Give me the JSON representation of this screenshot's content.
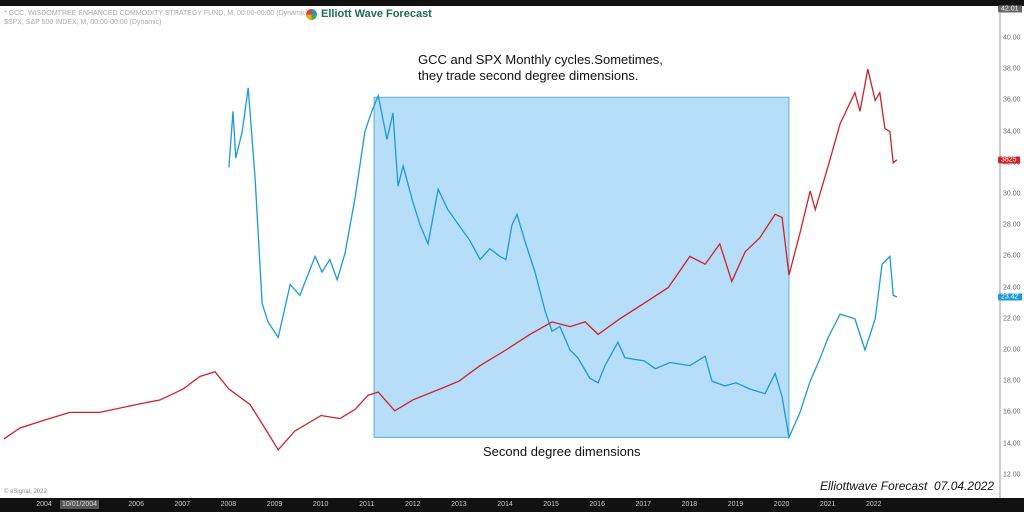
{
  "legend": {
    "line1": "* GCC, WISDOMTREE ENHANCED COMMODITY STRATEGY FUND, M, 00:00-00:00 (Dynamic)",
    "line2": "$SPX, S&P 500 INDEX, M, 00:00-00:00 (Dynamic)"
  },
  "logo_text": "Elliott Wave Forecast",
  "copyright": "© eSignal, 2022",
  "footer": "Elliottwave Forecast  07.04.2022",
  "cursor_date": "10/01/2004",
  "colors": {
    "gcc": "#1a9ad6",
    "spx": "#d0202a",
    "box_fill": "#b3dcf8",
    "box_stroke": "#5aaee0"
  },
  "chart_data": {
    "type": "line",
    "xlim": [
      2003.1,
      2024.3
    ],
    "ylim": [
      11.0,
      42.01
    ],
    "x_tick_labels": [
      "2004",
      "2006",
      "2007",
      "2008",
      "2009",
      "2010",
      "2011",
      "2012",
      "2013",
      "2014",
      "2015",
      "2016",
      "2017",
      "2018",
      "2019",
      "2020",
      "2021",
      "2022"
    ],
    "y_tick_labels": [
      "40.00",
      "38.00",
      "36.00",
      "34.00",
      "32.00",
      "30.00",
      "28.00",
      "26.00",
      "24.00",
      "22.00",
      "20.00",
      "18.00",
      "16.00",
      "14.00",
      "12.00"
    ],
    "y_top_label": "42.01",
    "grid": false,
    "annotations": {
      "title_line1": "GCC and SPX Monthly cycles.Sometimes,",
      "title_line2": "they trade second degree dimensions.",
      "box_label": "Second degree dimensions",
      "box": {
        "x0": 2011.16,
        "x1": 2020.16,
        "y0": 14.4,
        "y1": 36.2
      }
    },
    "series": [
      {
        "key": "gcc",
        "last_label": "23.42",
        "x": [
          2008.01,
          2008.1,
          2008.16,
          2008.3,
          2008.43,
          2008.58,
          2008.73,
          2008.86,
          2009.08,
          2009.34,
          2009.55,
          2009.88,
          2010.03,
          2010.2,
          2010.36,
          2010.53,
          2010.75,
          2010.96,
          2011.11,
          2011.25,
          2011.44,
          2011.57,
          2011.68,
          2011.79,
          2012.0,
          2012.16,
          2012.33,
          2012.55,
          2012.76,
          2013.0,
          2013.24,
          2013.46,
          2013.67,
          2013.89,
          2014.02,
          2014.15,
          2014.26,
          2014.43,
          2014.65,
          2014.87,
          2015.02,
          2015.19,
          2015.41,
          2015.58,
          2015.84,
          2016.02,
          2016.17,
          2016.45,
          2016.6,
          2017.02,
          2017.26,
          2017.58,
          2018.01,
          2018.34,
          2018.49,
          2018.77,
          2019.01,
          2019.31,
          2019.64,
          2019.86,
          2020.01,
          2020.16,
          2020.4,
          2020.62,
          2020.84,
          2021.01,
          2021.27,
          2021.59,
          2021.81,
          2022.03,
          2022.18,
          2022.35,
          2022.42,
          2022.5
        ],
        "y": [
          31.7,
          35.3,
          32.3,
          34.0,
          36.8,
          31.0,
          23.0,
          21.8,
          20.8,
          24.2,
          23.5,
          26.0,
          25.0,
          25.8,
          24.5,
          26.2,
          29.8,
          34.0,
          35.3,
          36.3,
          33.5,
          35.2,
          30.5,
          31.8,
          29.5,
          28.0,
          26.8,
          30.3,
          29.0,
          28.0,
          27.0,
          25.8,
          26.5,
          26.0,
          25.8,
          28.0,
          28.7,
          27.0,
          25.0,
          22.5,
          21.2,
          21.5,
          20.0,
          19.5,
          18.2,
          17.9,
          19.0,
          20.5,
          19.5,
          19.3,
          18.8,
          19.2,
          19.0,
          19.6,
          18.0,
          17.7,
          17.9,
          17.5,
          17.2,
          18.5,
          17.0,
          14.4,
          16.0,
          18.0,
          19.5,
          20.8,
          22.3,
          22.0,
          20.0,
          22.0,
          25.5,
          26.0,
          23.5,
          23.4
        ]
      },
      {
        "key": "spx",
        "last_label": "3825",
        "x": [
          2003.13,
          2003.48,
          2004.0,
          2004.56,
          2005.21,
          2006.0,
          2006.52,
          2007.02,
          2007.38,
          2007.71,
          2008.01,
          2008.47,
          2008.79,
          2009.08,
          2009.44,
          2010.01,
          2010.42,
          2010.75,
          2011.03,
          2011.25,
          2011.61,
          2012.0,
          2012.59,
          2013.0,
          2013.46,
          2014.02,
          2014.54,
          2015.02,
          2015.41,
          2015.74,
          2016.02,
          2016.49,
          2017.02,
          2017.54,
          2018.01,
          2018.34,
          2018.66,
          2018.92,
          2019.21,
          2019.53,
          2019.86,
          2020.01,
          2020.16,
          2020.4,
          2020.62,
          2020.73,
          2021.01,
          2021.27,
          2021.59,
          2021.7,
          2021.87,
          2022.03,
          2022.13,
          2022.24,
          2022.35,
          2022.42,
          2022.5
        ],
        "y": [
          14.3,
          15.0,
          15.5,
          16.0,
          16.0,
          16.5,
          16.8,
          17.5,
          18.3,
          18.6,
          17.5,
          16.5,
          15.0,
          13.6,
          14.8,
          15.8,
          15.6,
          16.2,
          17.1,
          17.3,
          16.1,
          16.8,
          17.5,
          18.0,
          19.0,
          20.0,
          21.0,
          21.8,
          21.5,
          21.8,
          21.0,
          22.0,
          23.0,
          24.0,
          26.0,
          25.5,
          26.8,
          24.4,
          26.3,
          27.2,
          28.7,
          28.5,
          24.8,
          27.5,
          30.2,
          29.0,
          31.8,
          34.5,
          36.5,
          35.3,
          38.0,
          36.0,
          36.5,
          34.2,
          34.0,
          32.0,
          32.2
        ]
      }
    ]
  }
}
